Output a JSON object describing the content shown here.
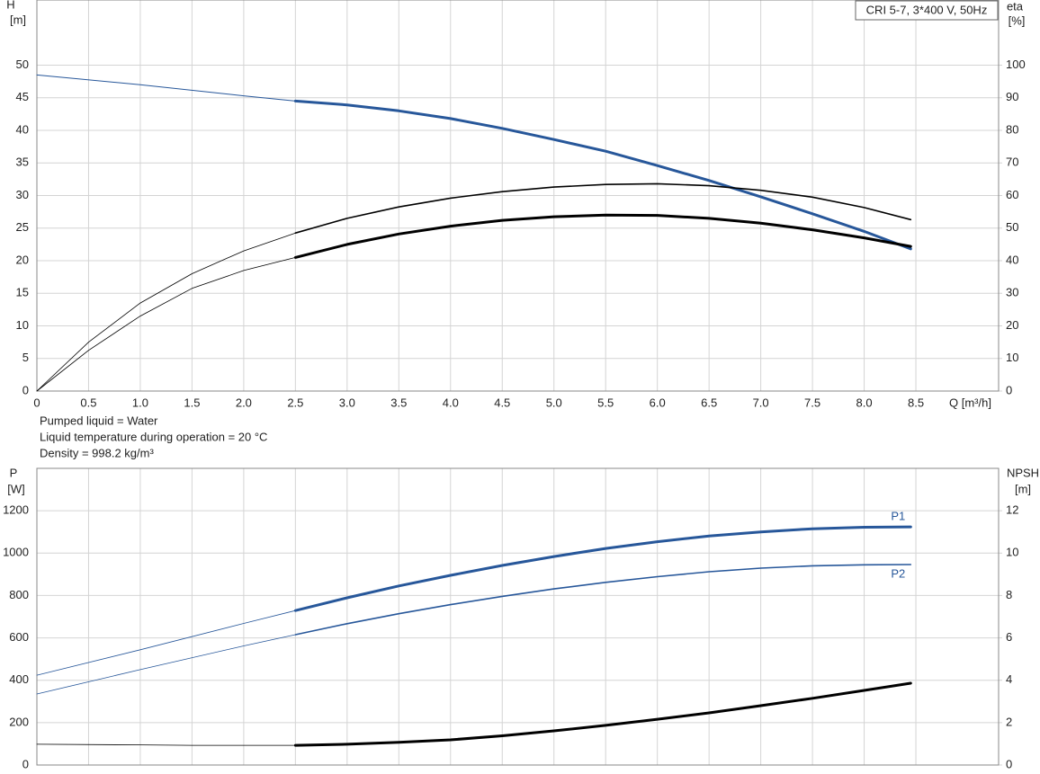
{
  "chart_data": [
    {
      "type": "line",
      "subtitle": "CRI 5-7, 3*400 V, 50Hz",
      "ylabel": [
        "H",
        "[m]"
      ],
      "y2label": [
        "eta",
        "[%]"
      ],
      "xlabel": "Q [m³/h]",
      "xlim": [
        0,
        9.3
      ],
      "xticks": [
        0,
        0.5,
        {
          "value": 1,
          "label": "1.0"
        },
        1.5,
        {
          "value": 2,
          "label": "2.0"
        },
        2.5,
        {
          "value": 3,
          "label": "3.0"
        },
        3.5,
        {
          "value": 4,
          "label": "4.0"
        },
        4.5,
        {
          "value": 5,
          "label": "5.0"
        },
        5.5,
        {
          "value": 6,
          "label": "6.0"
        },
        6.5,
        {
          "value": 7,
          "label": "7.0"
        },
        7.5,
        {
          "value": 8,
          "label": "8.0"
        },
        8.5
      ],
      "xtick_labels": true,
      "ylim": [
        0,
        60
      ],
      "yticks": [
        0,
        5,
        10,
        15,
        20,
        25,
        30,
        35,
        40,
        45,
        50
      ],
      "y2lim": [
        0,
        120
      ],
      "y2ticks": [
        0,
        10,
        20,
        30,
        40,
        50,
        60,
        70,
        80,
        90,
        100
      ],
      "grid": true,
      "notes": [
        "Pumped liquid = Water",
        "Liquid temperature during operation = 20 °C",
        "Density = 998.2 kg/m³"
      ],
      "series": [
        {
          "color": "#27579a",
          "width": 1,
          "x": [
            0,
            1,
            2,
            2.5
          ],
          "values": [
            48.5,
            47,
            45.3,
            44.5
          ]
        },
        {
          "color": "#27579a",
          "width": 3,
          "x": [
            2.5,
            3,
            3.5,
            4,
            4.5,
            5,
            5.5,
            6,
            6.5,
            7,
            7.5,
            8,
            8.45
          ],
          "values": [
            44.5,
            43.9,
            43,
            41.8,
            40.3,
            38.6,
            36.8,
            34.6,
            32.3,
            29.8,
            27.2,
            24.5,
            21.8
          ]
        },
        {
          "color": "#000000",
          "width": 0.8,
          "axis": "y2",
          "x": [
            0,
            0.5,
            1,
            1.5,
            2,
            2.5
          ],
          "values": [
            0,
            15,
            27,
            36,
            43,
            48.5
          ]
        },
        {
          "color": "#000000",
          "width": 1.6,
          "axis": "y2",
          "x": [
            2.5,
            3,
            3.5,
            4,
            4.5,
            5,
            5.5,
            6,
            6.5,
            7,
            7.5,
            8,
            8.45
          ],
          "values": [
            48.5,
            53,
            56.5,
            59.2,
            61.2,
            62.6,
            63.4,
            63.6,
            63,
            61.6,
            59.5,
            56.3,
            52.6
          ]
        },
        {
          "color": "#000000",
          "width": 0.8,
          "axis": "y2",
          "x": [
            0,
            0.5,
            1,
            1.5,
            2,
            2.5
          ],
          "values": [
            0,
            12.5,
            23,
            31.5,
            37,
            41
          ]
        },
        {
          "color": "#000000",
          "width": 3,
          "axis": "y2",
          "x": [
            2.5,
            3,
            3.5,
            4,
            4.5,
            5,
            5.5,
            6,
            6.5,
            7,
            7.5,
            8,
            8.45
          ],
          "values": [
            41,
            45,
            48.2,
            50.6,
            52.4,
            53.5,
            54,
            53.9,
            53,
            51.5,
            49.5,
            47,
            44.4
          ]
        }
      ]
    },
    {
      "type": "line",
      "ylabel": [
        "P",
        "[W]"
      ],
      "y2label": [
        "NPSH",
        "[m]"
      ],
      "xlim": [
        0,
        9.3
      ],
      "xticks": [
        0,
        0.5,
        1,
        1.5,
        2,
        2.5,
        3,
        3.5,
        4,
        4.5,
        5,
        5.5,
        6,
        6.5,
        7,
        7.5,
        8,
        8.5
      ],
      "xtick_labels": false,
      "ylim": [
        0,
        1400
      ],
      "yticks": [
        0,
        200,
        400,
        600,
        800,
        1000,
        1200
      ],
      "y2lim": [
        0,
        14
      ],
      "y2ticks": [
        0,
        2,
        4,
        6,
        8,
        10,
        12
      ],
      "grid": true,
      "series": [
        {
          "color": "#27579a",
          "width": 0.8,
          "x": [
            0,
            1,
            2,
            2.5
          ],
          "values": [
            424,
            544,
            668,
            729
          ]
        },
        {
          "color": "#27579a",
          "width": 3,
          "label": "P1",
          "label_side": "above",
          "x": [
            2.5,
            3,
            3.5,
            4,
            4.5,
            5,
            5.5,
            6,
            6.5,
            7,
            7.5,
            8,
            8.45
          ],
          "values": [
            729,
            789,
            845,
            895,
            942,
            984,
            1022,
            1054,
            1081,
            1100,
            1115,
            1122,
            1124
          ]
        },
        {
          "color": "#27579a",
          "width": 0.8,
          "x": [
            0,
            1,
            2,
            2.5
          ],
          "values": [
            335,
            450,
            562,
            615
          ]
        },
        {
          "color": "#27579a",
          "width": 1.6,
          "label": "P2",
          "label_side": "below",
          "x": [
            2.5,
            3,
            3.5,
            4,
            4.5,
            5,
            5.5,
            6,
            6.5,
            7,
            7.5,
            8,
            8.45
          ],
          "values": [
            615,
            667,
            714,
            757,
            796,
            831,
            862,
            889,
            912,
            929,
            940,
            945,
            946
          ]
        },
        {
          "color": "#000000",
          "width": 0.8,
          "axis": "y2",
          "x": [
            0,
            1,
            1.5,
            2,
            2.5
          ],
          "values": [
            0.98,
            0.95,
            0.93,
            0.93,
            0.93
          ]
        },
        {
          "color": "#000000",
          "width": 3,
          "axis": "y2",
          "x": [
            2.5,
            3,
            3.5,
            4,
            4.5,
            5,
            5.5,
            6,
            6.5,
            7,
            7.5,
            8,
            8.45
          ],
          "values": [
            0.93,
            0.98,
            1.07,
            1.19,
            1.38,
            1.61,
            1.87,
            2.16,
            2.46,
            2.8,
            3.15,
            3.52,
            3.86
          ]
        }
      ]
    }
  ]
}
